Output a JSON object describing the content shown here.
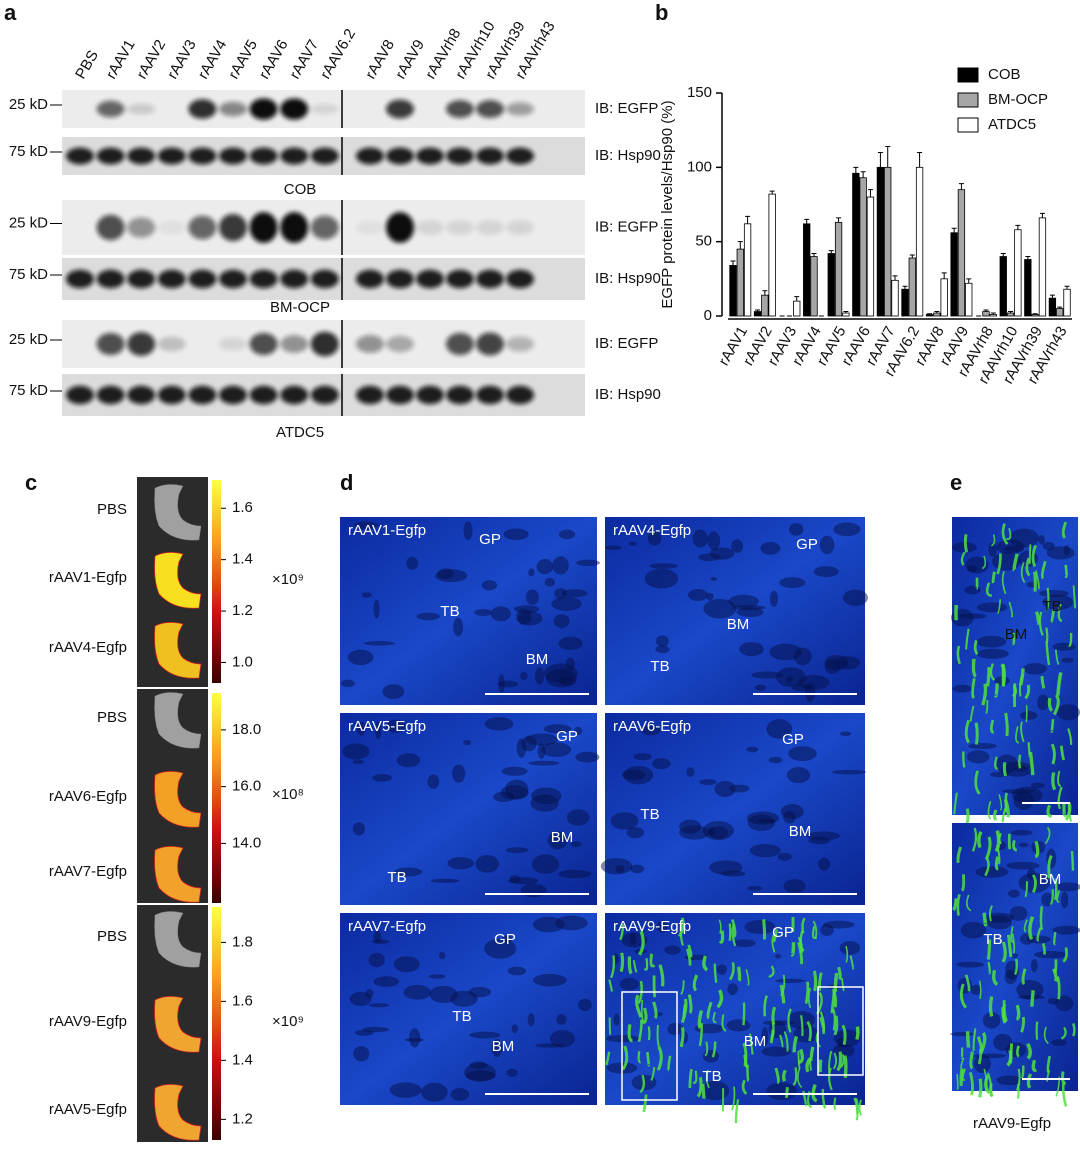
{
  "panel_a": {
    "label": "a",
    "lanes": [
      "PBS",
      "rAAV1",
      "rAAV2",
      "rAAV3",
      "rAAV4",
      "rAAV5",
      "rAAV6",
      "rAAV7",
      "rAAV6.2",
      "rAAV8",
      "rAAV9",
      "rAAVrh8",
      "rAAVrh10",
      "rAAVrh39",
      "rAAVrh43"
    ],
    "blots": [
      {
        "cell_line": "COB",
        "rows": [
          {
            "size": "25 kD",
            "ib": "IB: EGFP"
          },
          {
            "size": "75 kD",
            "ib": "IB: Hsp90"
          }
        ]
      },
      {
        "cell_line": "BM-OCP",
        "rows": [
          {
            "size": "25 kD",
            "ib": "IB: EGFP"
          },
          {
            "size": "75 kD",
            "ib": "IB: Hsp90"
          }
        ]
      },
      {
        "cell_line": "ATDC5",
        "rows": [
          {
            "size": "25 kD",
            "ib": "IB: EGFP"
          },
          {
            "size": "75 kD",
            "ib": "IB: Hsp90"
          }
        ]
      }
    ]
  },
  "chart_data": {
    "label": "b",
    "type": "bar",
    "y_label": "EGFP protein levels/Hsp90 (%)",
    "categories": [
      "rAAV1",
      "rAAV2",
      "rAAV3",
      "rAAV4",
      "rAAV5",
      "rAAV6",
      "rAAV7",
      "rAAV6.2",
      "rAAV8",
      "rAAV9",
      "rAAVrh8",
      "rAAVrh10",
      "rAAVrh39",
      "rAAVrh43"
    ],
    "series": [
      {
        "name": "COB",
        "color": "#000000",
        "values": [
          34,
          3,
          0,
          62,
          42,
          96,
          100,
          18,
          1,
          56,
          0,
          40,
          38,
          12
        ],
        "errors": [
          3,
          1,
          0,
          3,
          2,
          4,
          10,
          2,
          0.5,
          3,
          0,
          2,
          2,
          2
        ]
      },
      {
        "name": "BM-OCP",
        "color": "#a6a6a6",
        "values": [
          45,
          14,
          0,
          40,
          63,
          93,
          100,
          39,
          2,
          85,
          3,
          2,
          1,
          5
        ],
        "errors": [
          5,
          3,
          0,
          2,
          3,
          4,
          14,
          2,
          1,
          4,
          1,
          1,
          0.5,
          1
        ]
      },
      {
        "name": "ATDC5",
        "color": "#ffffff",
        "values": [
          62,
          82,
          10,
          0,
          2,
          80,
          24,
          100,
          25,
          22,
          1,
          58,
          66,
          18
        ],
        "errors": [
          5,
          2,
          3,
          0,
          1,
          5,
          3,
          10,
          4,
          3,
          1,
          3,
          3,
          2
        ]
      }
    ],
    "ylim": [
      0,
      150
    ],
    "yticks": [
      0,
      50,
      100,
      150
    ],
    "legend": "upper right"
  },
  "panel_c": {
    "label": "c",
    "groups": [
      {
        "samples": [
          "PBS",
          "rAAV1-Egfp",
          "rAAV4-Egfp"
        ],
        "colorbar_lim": [
          0.92,
          1.71
        ],
        "colorbar_ticks": [
          1.6,
          1.4,
          1.2,
          {
            "value": 1,
            "label": "1.0"
          }
        ],
        "scale": "×10⁹"
      },
      {
        "samples": [
          "PBS",
          "rAAV6-Egfp",
          "rAAV7-Egfp"
        ],
        "colorbar_lim": [
          11.9,
          19.3
        ],
        "colorbar_ticks": [
          {
            "value": 18,
            "label": "18.0"
          },
          {
            "value": 16,
            "label": "16.0"
          },
          {
            "value": 14,
            "label": "14.0"
          }
        ],
        "scale": "×10⁸"
      },
      {
        "samples": [
          "PBS",
          "rAAV9-Egfp",
          "rAAV5-Egfp"
        ],
        "colorbar_lim": [
          1.13,
          1.92
        ],
        "colorbar_ticks": [
          1.8,
          1.6,
          1.4,
          1.2
        ],
        "scale": "×10⁹"
      }
    ]
  },
  "panel_d": {
    "label": "d",
    "images": [
      {
        "title": "rAAV1-Egfp",
        "regions": [
          "GP",
          "TB",
          "BM"
        ]
      },
      {
        "title": "rAAV4-Egfp",
        "regions": [
          "GP",
          "BM",
          "TB"
        ]
      },
      {
        "title": "rAAV5-Egfp",
        "regions": [
          "GP",
          "BM",
          "TB"
        ]
      },
      {
        "title": "rAAV6-Egfp",
        "regions": [
          "GP",
          "TB",
          "BM"
        ]
      },
      {
        "title": "rAAV7-Egfp",
        "regions": [
          "GP",
          "TB",
          "BM"
        ]
      },
      {
        "title": "rAAV9-Egfp",
        "regions": [
          "GP",
          "BM",
          "TB"
        ]
      }
    ]
  },
  "panel_e": {
    "label": "e",
    "images": [
      {
        "regions": [
          "TB",
          "BM"
        ]
      },
      {
        "regions": [
          "BM",
          "TB"
        ]
      }
    ],
    "caption": "rAAV9-Egfp"
  }
}
